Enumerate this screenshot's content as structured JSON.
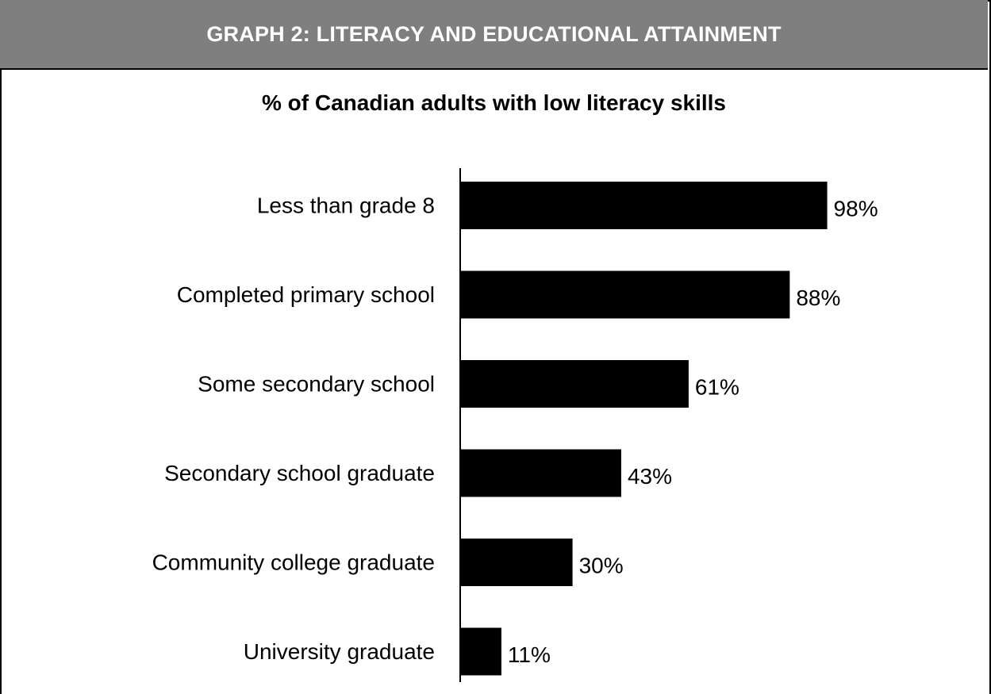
{
  "header": {
    "title": "GRAPH 2: LITERACY AND EDUCATIONAL ATTAINMENT"
  },
  "chart_data": {
    "type": "bar",
    "orientation": "horizontal",
    "title": "% of Canadian adults with low literacy skills",
    "categories": [
      "Less than grade 8",
      "Completed primary school",
      "Some secondary school",
      "Secondary school graduate",
      "Community college graduate",
      "University graduate"
    ],
    "values": [
      98,
      88,
      61,
      43,
      30,
      11
    ],
    "data_labels": [
      "98%",
      "88%",
      "61%",
      "43%",
      "30%",
      "11%"
    ],
    "xlim": [
      0,
      100
    ],
    "grid": false,
    "legend": "none",
    "colors": {
      "bar": "#000000",
      "header_background": "#7f7f7f",
      "header_text": "#ffffff"
    }
  }
}
